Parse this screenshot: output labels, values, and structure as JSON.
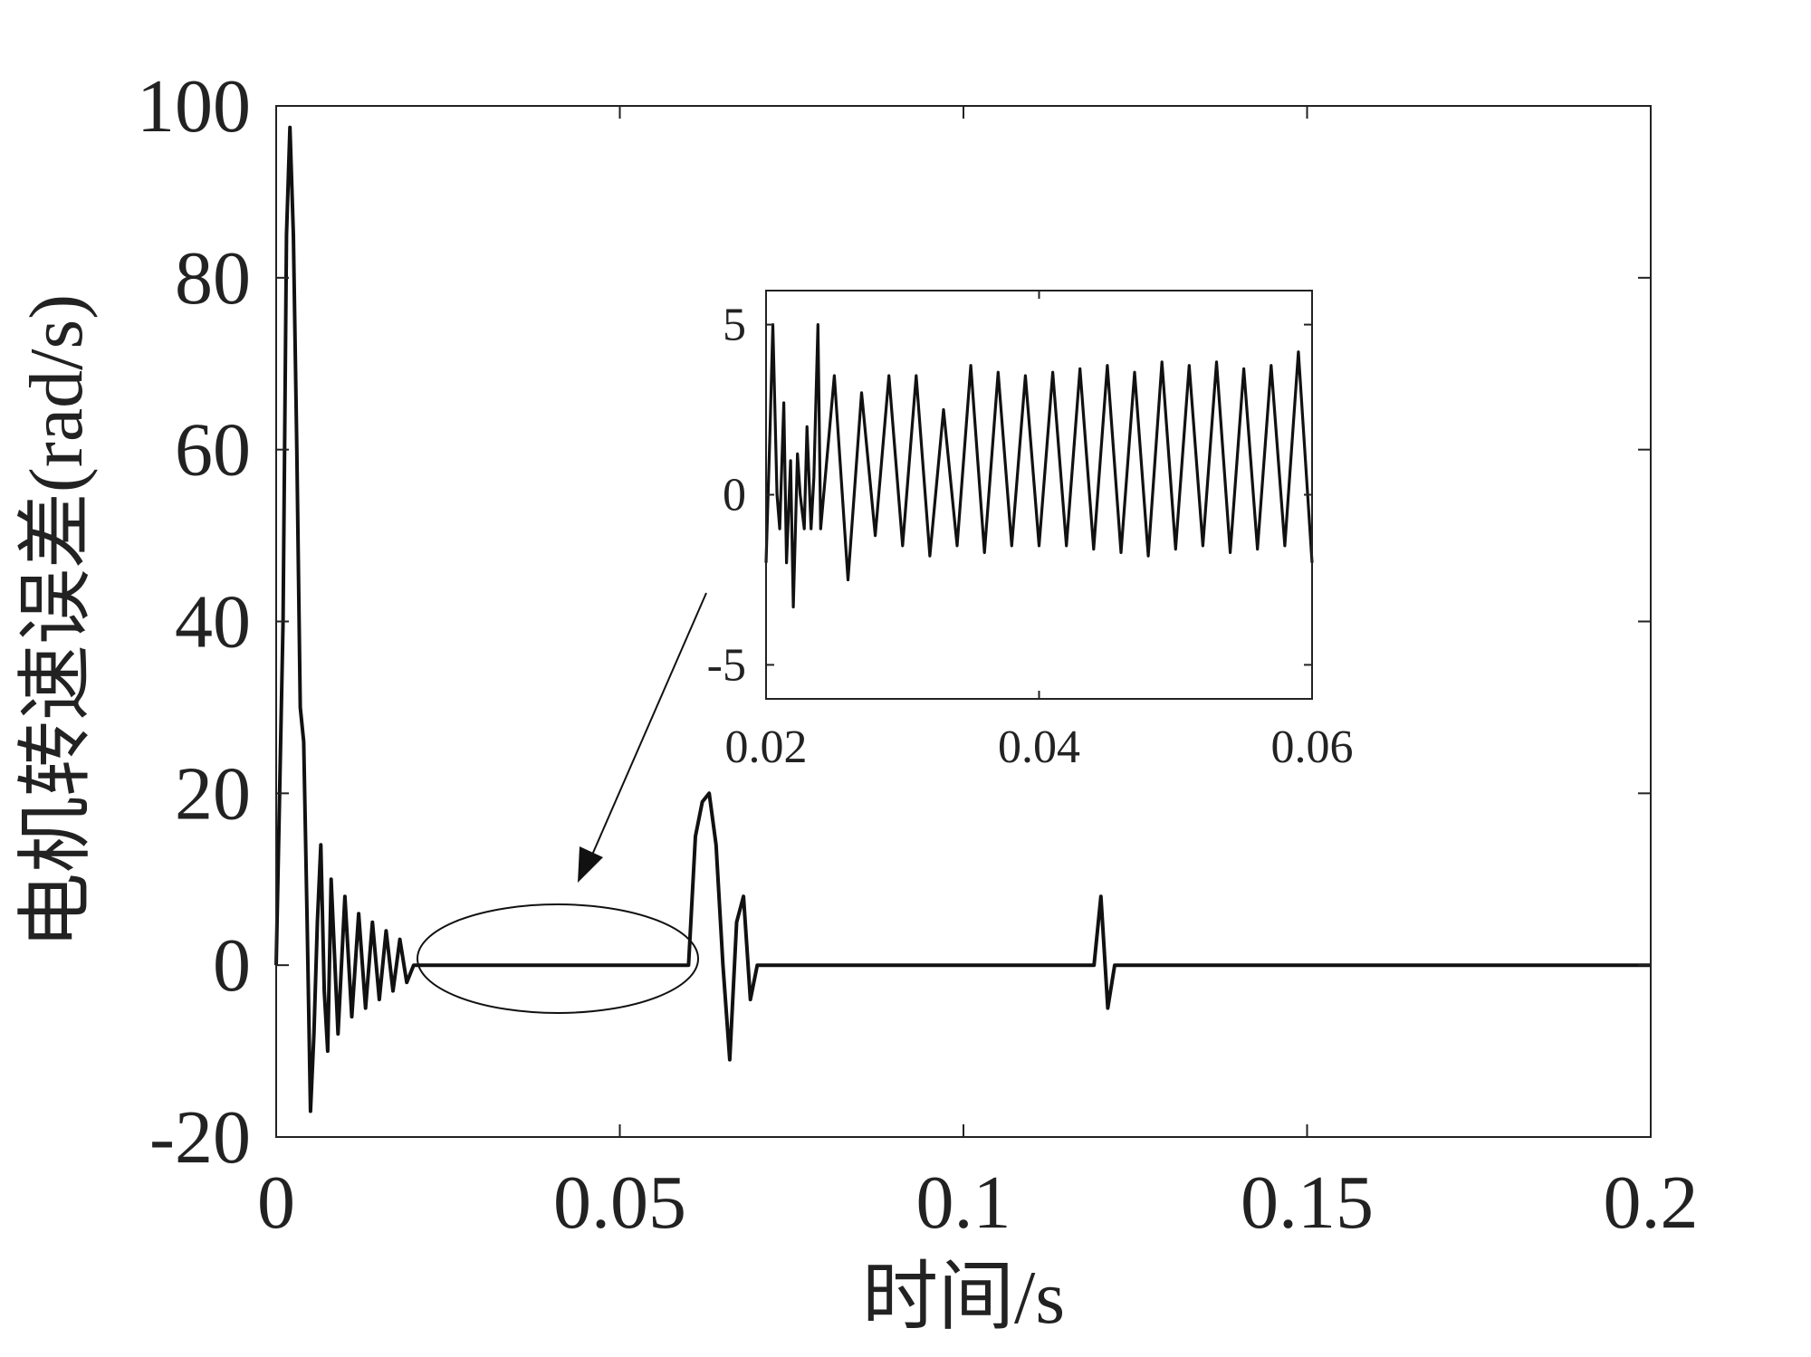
{
  "chart_data": [
    {
      "type": "line",
      "xlabel": "时间/s",
      "ylabel": "电机转速误差(rad/s)",
      "xlim": [
        0,
        0.2
      ],
      "ylim": [
        -20,
        100
      ],
      "x_ticks": [
        0,
        0.05,
        0.1,
        0.15,
        0.2
      ],
      "x_tick_labels": [
        "0",
        "0.05",
        "0.1",
        "0.15",
        "0.2"
      ],
      "y_ticks": [
        -20,
        0,
        20,
        40,
        60,
        80,
        100
      ],
      "y_tick_labels": [
        "-20",
        "0",
        "20",
        "40",
        "60",
        "80",
        "100"
      ],
      "grid": false,
      "series": [
        {
          "color": "#111111",
          "x": [
            0,
            0.001,
            0.0015,
            0.002,
            0.0025,
            0.003,
            0.0035,
            0.004,
            0.0045,
            0.005,
            0.0055,
            0.006,
            0.0065,
            0.007,
            0.0075,
            0.008,
            0.009,
            0.01,
            0.011,
            0.012,
            0.013,
            0.014,
            0.015,
            0.016,
            0.017,
            0.018,
            0.019,
            0.02,
            0.03,
            0.04,
            0.05,
            0.058,
            0.06,
            0.061,
            0.062,
            0.063,
            0.064,
            0.065,
            0.066,
            0.067,
            0.068,
            0.069,
            0.07,
            0.08,
            0.1,
            0.119,
            0.12,
            0.121,
            0.122,
            0.14,
            0.16,
            0.18,
            0.2
          ],
          "y": [
            0,
            40,
            85,
            97.5,
            85,
            60,
            30,
            26,
            5,
            -17,
            -8,
            5,
            14,
            -3,
            -10,
            10,
            -8,
            8,
            -6,
            6,
            -5,
            5,
            -4,
            4,
            -3,
            3,
            -2,
            0,
            0,
            0,
            0,
            0,
            0,
            15,
            19,
            20,
            14,
            0,
            -11,
            5,
            8,
            -4,
            0,
            0,
            0,
            0,
            8,
            -5,
            0,
            0,
            0,
            0,
            0
          ]
        }
      ]
    },
    {
      "type": "line",
      "xlim": [
        0.02,
        0.06
      ],
      "ylim": [
        -6,
        6
      ],
      "x_ticks": [
        0.02,
        0.04,
        0.06
      ],
      "x_tick_labels": [
        "0.02",
        "0.04",
        "0.06"
      ],
      "y_ticks": [
        -5,
        0,
        5
      ],
      "y_tick_labels": [
        "-5",
        "0",
        "5"
      ],
      "grid": false,
      "series": [
        {
          "color": "#111111",
          "x": [
            0.02,
            0.0203,
            0.0205,
            0.0208,
            0.021,
            0.0213,
            0.0215,
            0.0218,
            0.022,
            0.0223,
            0.0225,
            0.0228,
            0.023,
            0.0233,
            0.0235,
            0.0238,
            0.024,
            0.025,
            0.026,
            0.027,
            0.028,
            0.029,
            0.03,
            0.031,
            0.032,
            0.033,
            0.034,
            0.035,
            0.036,
            0.037,
            0.038,
            0.039,
            0.04,
            0.041,
            0.042,
            0.043,
            0.044,
            0.045,
            0.046,
            0.047,
            0.048,
            0.049,
            0.05,
            0.051,
            0.052,
            0.053,
            0.054,
            0.055,
            0.056,
            0.057,
            0.058,
            0.059,
            0.06
          ],
          "y": [
            -2,
            2,
            5,
            0,
            -1,
            2.7,
            -2,
            1,
            -3.3,
            1.2,
            0,
            -1,
            2,
            -1,
            0.5,
            5,
            -1,
            3.5,
            -2.5,
            3,
            -1.2,
            3.5,
            -1.5,
            3.5,
            -1.8,
            2.5,
            -1.5,
            3.8,
            -1.7,
            3.6,
            -1.5,
            3.5,
            -1.5,
            3.6,
            -1.5,
            3.7,
            -1.6,
            3.8,
            -1.7,
            3.6,
            -1.8,
            3.9,
            -1.6,
            3.8,
            -1.5,
            3.9,
            -1.7,
            3.7,
            -1.6,
            3.8,
            -1.5,
            4.2,
            -2
          ]
        }
      ]
    }
  ]
}
